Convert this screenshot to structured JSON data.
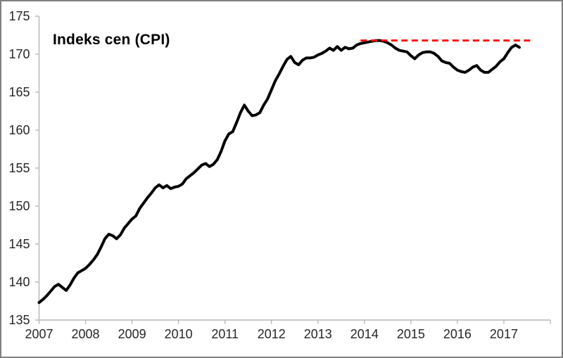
{
  "frame": {
    "border_color": "#808080",
    "background_color": "#ffffff",
    "axis_color": "#b5b5b5",
    "tick_label_color": "#262626"
  },
  "chart_data": {
    "type": "line",
    "title": "Indeks cen (CPI)",
    "xlabel": "",
    "ylabel": "",
    "ylim": [
      135,
      175
    ],
    "y_tick_step": 5,
    "y_tick_labels": [
      "135",
      "140",
      "145",
      "150",
      "155",
      "160",
      "165",
      "170",
      "175"
    ],
    "x_axis_tick_labels": [
      "2007",
      "2008",
      "2009",
      "2010",
      "2011",
      "2012",
      "2013",
      "2014",
      "2015",
      "2016",
      "2017"
    ],
    "x_unit": "month",
    "x_range_months": [
      "2007-01",
      "2017-05"
    ],
    "grid": false,
    "legend_position": "none",
    "series": [
      {
        "name": "Indeks cen (CPI)",
        "style": "solid",
        "color": "#000000",
        "line_width": 4,
        "start_month": "2007-01",
        "values": [
          137.3,
          137.7,
          138.2,
          138.8,
          139.4,
          139.7,
          139.3,
          138.9,
          139.6,
          140.5,
          141.2,
          141.5,
          141.8,
          142.3,
          142.9,
          143.6,
          144.6,
          145.7,
          146.3,
          146.1,
          145.7,
          146.2,
          147.1,
          147.7,
          148.3,
          148.7,
          149.7,
          150.4,
          151.1,
          151.7,
          152.4,
          152.8,
          152.4,
          152.7,
          152.3,
          152.5,
          152.6,
          152.9,
          153.6,
          154.0,
          154.4,
          154.9,
          155.4,
          155.6,
          155.2,
          155.5,
          156.1,
          157.2,
          158.6,
          159.5,
          159.8,
          161.0,
          162.3,
          163.3,
          162.5,
          161.9,
          162.0,
          162.3,
          163.3,
          164.1,
          165.3,
          166.5,
          167.4,
          168.4,
          169.3,
          169.7,
          168.9,
          168.6,
          169.2,
          169.5,
          169.5,
          169.6,
          169.9,
          170.1,
          170.4,
          170.8,
          170.5,
          171.0,
          170.5,
          170.9,
          170.7,
          170.8,
          171.2,
          171.4,
          171.5,
          171.6,
          171.7,
          171.8,
          171.8,
          171.7,
          171.5,
          171.2,
          170.8,
          170.5,
          170.4,
          170.3,
          169.8,
          169.4,
          169.9,
          170.2,
          170.3,
          170.3,
          170.1,
          169.7,
          169.1,
          168.9,
          168.8,
          168.3,
          167.9,
          167.7,
          167.6,
          167.9,
          168.3,
          168.5,
          167.9,
          167.6,
          167.6,
          168.0,
          168.4,
          169.0,
          169.4,
          170.2,
          170.9,
          171.2,
          170.9
        ]
      },
      {
        "name": "peak reference line",
        "style": "dashed",
        "color": "#ff0000",
        "line_width": 2.8,
        "value": 171.8,
        "start_month": "2013-12",
        "end_month": "2017-08"
      }
    ]
  }
}
